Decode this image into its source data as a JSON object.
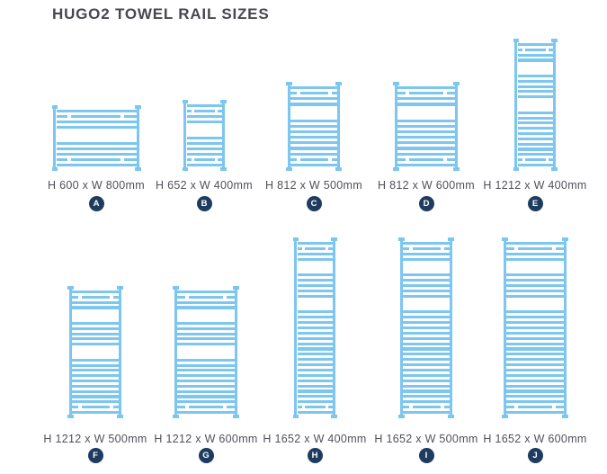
{
  "title": "HUGO2 TOWEL RAIL SIZES",
  "colors": {
    "rail_blue": "#7cc6f0",
    "badge_navy": "#1d3c60",
    "title_color": "#47474f",
    "caption_color": "#50505a"
  },
  "rows": [
    {
      "items": [
        {
          "badge": "A",
          "caption": "H 600 x W 800mm",
          "height_mm": 600,
          "width_mm": 800
        },
        {
          "badge": "B",
          "caption": "H 652 x W 400mm",
          "height_mm": 652,
          "width_mm": 400
        },
        {
          "badge": "C",
          "caption": "H 812 x W 500mm",
          "height_mm": 812,
          "width_mm": 500
        },
        {
          "badge": "D",
          "caption": "H 812 x W 600mm",
          "height_mm": 812,
          "width_mm": 600
        },
        {
          "badge": "E",
          "caption": "H 1212 x W 400mm",
          "height_mm": 1212,
          "width_mm": 400
        }
      ]
    },
    {
      "items": [
        {
          "badge": "F",
          "caption": "H 1212 x W 500mm",
          "height_mm": 1212,
          "width_mm": 500
        },
        {
          "badge": "G",
          "caption": "H 1212 x W 600mm",
          "height_mm": 1212,
          "width_mm": 600
        },
        {
          "badge": "H",
          "caption": "H 1652 x W 400mm",
          "height_mm": 1652,
          "width_mm": 400
        },
        {
          "badge": "I",
          "caption": "H 1652 x W 500mm",
          "height_mm": 1652,
          "width_mm": 500
        },
        {
          "badge": "J",
          "caption": "H 1652 x W 600mm",
          "height_mm": 1652,
          "width_mm": 600
        }
      ]
    }
  ]
}
